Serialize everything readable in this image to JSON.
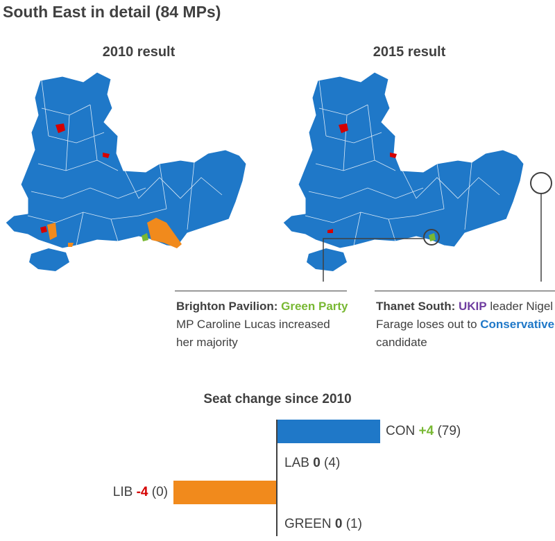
{
  "title": "South East in detail (84 MPs)",
  "maps": {
    "left_label": "2010 result",
    "right_label": "2015 result"
  },
  "colors": {
    "con": "#1f78c8",
    "lab": "#d50000",
    "lib": "#f18a1c",
    "green": "#78b833",
    "ukip": "#6f3da0",
    "text": "#404040"
  },
  "annotations": {
    "brighton": {
      "place": "Brighton Pavilion:",
      "party": "Green Party",
      "rest": "MP Caroline Lucas increased her majority"
    },
    "thanet": {
      "place": "Thanet South:",
      "party": "UKIP",
      "rest1": "leader Nigel Farage loses out to",
      "party2": "Conservative",
      "rest2": "candidate"
    }
  },
  "chart_data": {
    "type": "bar",
    "title": "Seat change since 2010",
    "categories": [
      "CON",
      "LAB",
      "LIB",
      "GREEN"
    ],
    "values": [
      4,
      0,
      -4,
      0
    ],
    "seats": [
      79,
      4,
      0,
      1
    ],
    "change_labels": [
      "+4",
      "0",
      "-4",
      "0"
    ],
    "seat_labels": [
      "(79)",
      "(4)",
      "(0)",
      "(1)"
    ],
    "xlim": [
      -4,
      4
    ]
  }
}
